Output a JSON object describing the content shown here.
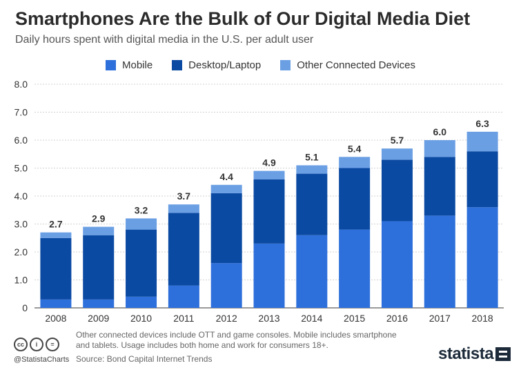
{
  "header": {
    "title": "Smartphones Are the Bulk of Our Digital Media Diet",
    "subtitle": "Daily hours spent with digital media in the U.S. per adult user"
  },
  "colors": {
    "mobile": "#2d6fdb",
    "desktop": "#0b4aa2",
    "other": "#6b9fe4",
    "grid": "#d0d0d0"
  },
  "chart_data": {
    "type": "bar",
    "stacked": true,
    "categories": [
      "2008",
      "2009",
      "2010",
      "2011",
      "2012",
      "2013",
      "2014",
      "2015",
      "2016",
      "2017",
      "2018"
    ],
    "series": [
      {
        "name": "Mobile",
        "values": [
          0.3,
          0.3,
          0.4,
          0.8,
          1.6,
          2.3,
          2.6,
          2.8,
          3.1,
          3.3,
          3.6
        ]
      },
      {
        "name": "Desktop/Laptop",
        "values": [
          2.2,
          2.3,
          2.4,
          2.6,
          2.5,
          2.3,
          2.2,
          2.2,
          2.2,
          2.1,
          2.0
        ]
      },
      {
        "name": "Other Connected Devices",
        "values": [
          0.2,
          0.3,
          0.4,
          0.3,
          0.3,
          0.3,
          0.3,
          0.4,
          0.4,
          0.6,
          0.7
        ]
      }
    ],
    "totals": [
      "2.7",
      "2.9",
      "3.2",
      "3.7",
      "4.4",
      "4.9",
      "5.1",
      "5.4",
      "5.7",
      "6.0",
      "6.3"
    ],
    "y_ticks": [
      "0",
      "1.0",
      "2.0",
      "3.0",
      "4.0",
      "5.0",
      "6.0",
      "7.0",
      "8.0"
    ],
    "ylim": [
      0,
      8
    ],
    "grid": true,
    "legend_position": "top-center"
  },
  "footer": {
    "note": "Other connected devices include OTT and game consoles. Mobile includes smartphone and tablets. Usage includes both home and work for consumers 18+.",
    "source": "Source: Bond Capital Internet Trends",
    "handle": "@StatistaCharts",
    "brand": "statista",
    "license_icons": [
      "cc",
      "i",
      "="
    ]
  }
}
